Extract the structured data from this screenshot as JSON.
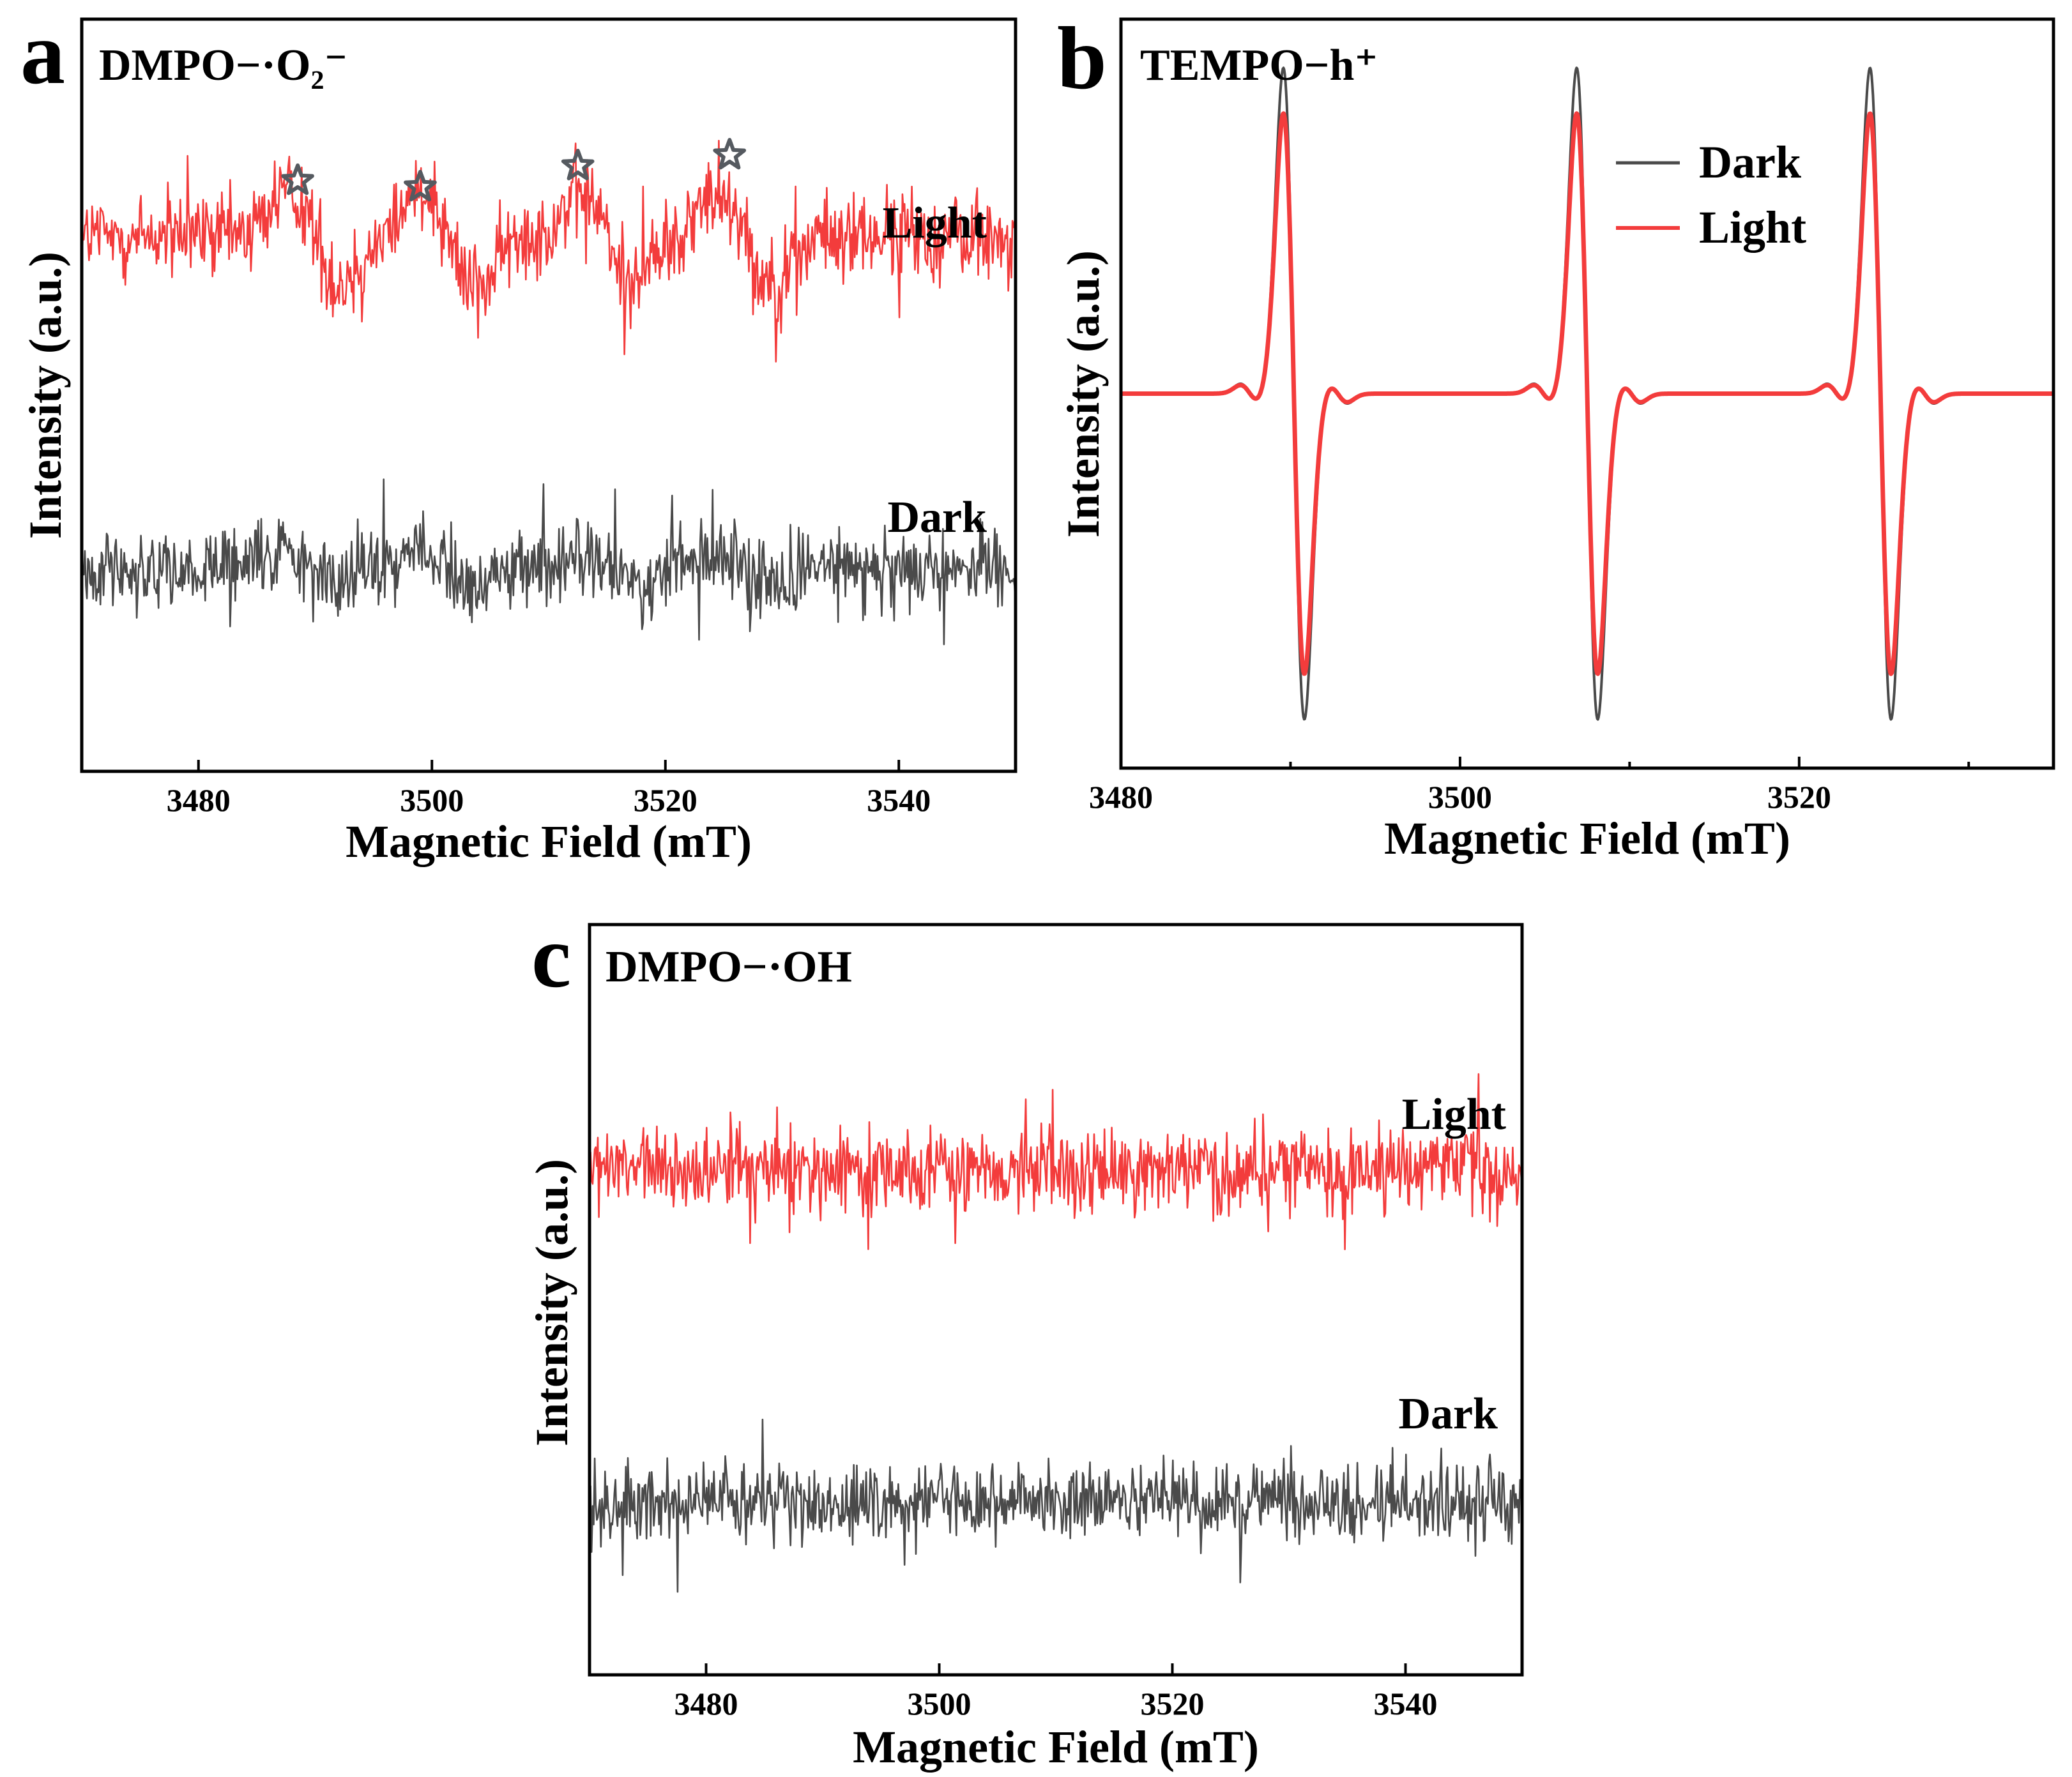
{
  "figure": {
    "panels": [
      {
        "id": "a",
        "letter": "a"
      },
      {
        "id": "b",
        "letter": "b"
      },
      {
        "id": "c",
        "letter": "c"
      }
    ]
  },
  "colors": {
    "dark": "#4a4a4a",
    "light": "#f33c3c",
    "star": "#555a60"
  },
  "chart_data": [
    {
      "panel": "a",
      "type": "line",
      "title": "DMPO−·O₂⁻",
      "xlabel": "Magnetic Field (mT)",
      "ylabel": "Intensity (a.u.)",
      "xlim": [
        3470,
        3550
      ],
      "xticks": [
        3480,
        3500,
        3520,
        3540
      ],
      "ylim": [
        -1.3,
        1.3
      ],
      "annotations": {
        "star_positions": [
          3488.5,
          3499,
          3512.5,
          3525.5
        ]
      },
      "series": [
        {
          "name": "Light",
          "color": "#f33c3c",
          "offset": 0.55,
          "noise": 0.14,
          "signal": [
            {
              "c": 3490,
              "a": 0.16,
              "w": 2.2
            },
            {
              "c": 3501.5,
              "a": 0.17,
              "w": 2.2
            },
            {
              "c": 3515,
              "a": 0.14,
              "w": 2.2
            },
            {
              "c": 3527,
              "a": 0.16,
              "w": 2.2
            }
          ]
        },
        {
          "name": "Dark",
          "color": "#4a4a4a",
          "offset": -0.6,
          "noise": 0.12,
          "signal": [
            {
              "c": 3490,
              "a": 0.05,
              "w": 2.2
            },
            {
              "c": 3501.5,
              "a": 0.06,
              "w": 2.2
            },
            {
              "c": 3515,
              "a": 0.05,
              "w": 2.2
            },
            {
              "c": 3527,
              "a": 0.05,
              "w": 2.2
            }
          ]
        }
      ]
    },
    {
      "panel": "b",
      "type": "line",
      "title": "TEMPO−h⁺",
      "xlabel": "Magnetic Field (mT)",
      "ylabel": "Intensity (a.u.)",
      "xlim": [
        3480,
        3535
      ],
      "xticks": [
        3480,
        3500,
        3520
      ],
      "minor_xticks": [
        3490,
        3510,
        3530
      ],
      "ylim": [
        -1.15,
        1.15
      ],
      "legend": {
        "position": "top-right"
      },
      "peaks": [
        3490.2,
        3507.5,
        3524.8
      ],
      "series": [
        {
          "name": "Dark",
          "color": "#4a4a4a",
          "amplitude": 1.0
        },
        {
          "name": "Light",
          "color": "#f33c3c",
          "amplitude": 0.86
        }
      ]
    },
    {
      "panel": "c",
      "type": "line",
      "title": "DMPO−·OH",
      "xlabel": "Magnetic Field (mT)",
      "ylabel": "Intensity (a.u.)",
      "xlim": [
        3470,
        3550
      ],
      "xticks": [
        3480,
        3500,
        3520,
        3540
      ],
      "ylim": [
        -1.3,
        1.3
      ],
      "series": [
        {
          "name": "Light",
          "color": "#f33c3c",
          "offset": 0.45,
          "noise": 0.13
        },
        {
          "name": "Dark",
          "color": "#4a4a4a",
          "offset": -0.7,
          "noise": 0.12
        }
      ]
    }
  ]
}
